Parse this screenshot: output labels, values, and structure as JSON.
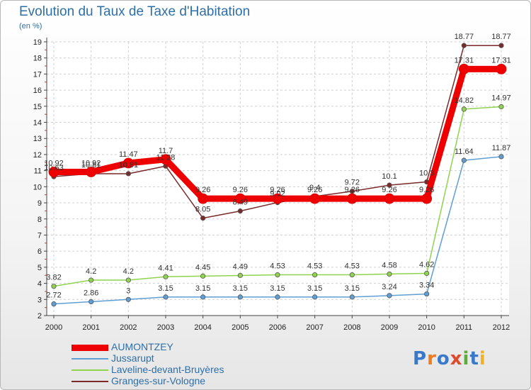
{
  "chart_data": {
    "type": "line",
    "title": "Evolution du Taux de Taxe d'Habitation",
    "subtitle": "(en %)",
    "categories": [
      "2000",
      "2001",
      "2002",
      "2003",
      "2004",
      "2005",
      "2006",
      "2007",
      "2008",
      "2009",
      "2010",
      "2011",
      "2012"
    ],
    "ylim": [
      2,
      19
    ],
    "yticks": [
      2,
      3,
      4,
      5,
      6,
      7,
      8,
      9,
      10,
      11,
      12,
      13,
      14,
      15,
      16,
      17,
      18,
      19
    ],
    "grid": true,
    "legend_position": "bottom-left",
    "series": [
      {
        "name": "AUMONTZEY",
        "color": "#ee0000",
        "values": [
          10.92,
          10.92,
          11.47,
          11.7,
          9.26,
          9.26,
          9.26,
          9.26,
          9.26,
          9.26,
          9.26,
          17.31,
          17.31
        ]
      },
      {
        "name": "Jussarupt",
        "color": "#5f9fd4",
        "values": [
          2.72,
          2.86,
          3,
          3.15,
          3.15,
          3.15,
          3.15,
          3.15,
          3.15,
          3.24,
          3.34,
          11.64,
          11.87
        ]
      },
      {
        "name": "Laveline-devant-Bruyères",
        "color": "#8fd34f",
        "values": [
          3.82,
          4.2,
          4.2,
          4.41,
          4.45,
          4.49,
          4.53,
          4.53,
          4.53,
          4.58,
          4.62,
          14.82,
          14.97
        ]
      },
      {
        "name": "Granges-sur-Vologne",
        "color": "#7a2a2a",
        "values": [
          10.63,
          10.81,
          10.81,
          11.28,
          8.05,
          8.49,
          9.02,
          9.4,
          9.72,
          10.1,
          10.3,
          18.77,
          18.77
        ]
      }
    ]
  },
  "logo": {
    "text": "Proxiti",
    "colors": [
      "#3a78c9",
      "#f07a1e",
      "#3a78c9",
      "#e04a2c",
      "#5dab3a",
      "#3a78c9",
      "#f0b21e"
    ]
  }
}
